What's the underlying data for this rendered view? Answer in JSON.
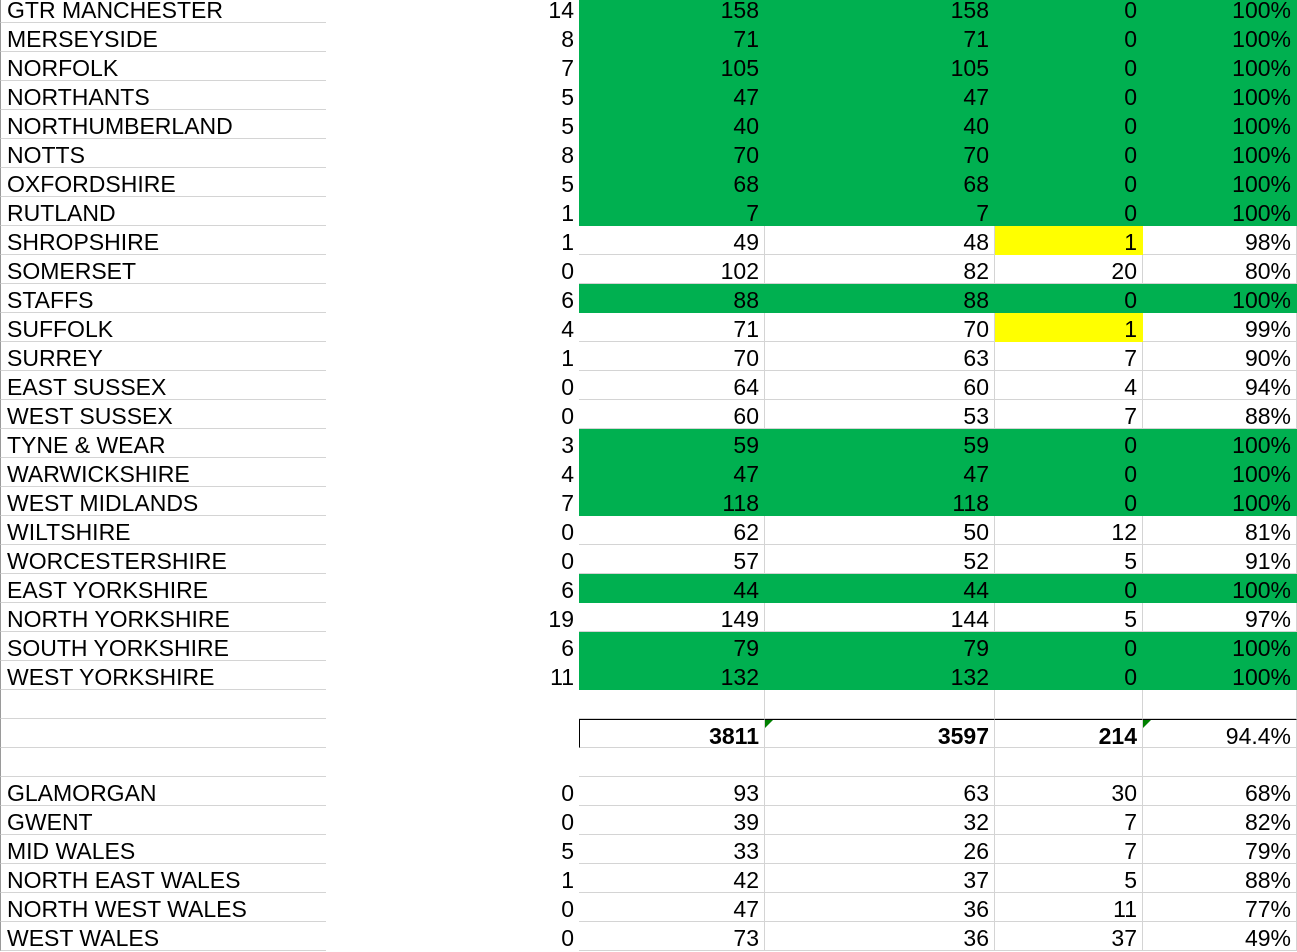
{
  "colors": {
    "full": "#00B050",
    "near": "#FFFF00"
  },
  "england": [
    {
      "name": "GTR MANCHESTER",
      "b": "14",
      "c": "158",
      "d": "158",
      "e": "0",
      "f": "100%",
      "fill": "green"
    },
    {
      "name": "MERSEYSIDE",
      "b": "8",
      "c": "71",
      "d": "71",
      "e": "0",
      "f": "100%",
      "fill": "green"
    },
    {
      "name": "NORFOLK",
      "b": "7",
      "c": "105",
      "d": "105",
      "e": "0",
      "f": "100%",
      "fill": "green"
    },
    {
      "name": "NORTHANTS",
      "b": "5",
      "c": "47",
      "d": "47",
      "e": "0",
      "f": "100%",
      "fill": "green"
    },
    {
      "name": "NORTHUMBERLAND",
      "b": "5",
      "c": "40",
      "d": "40",
      "e": "0",
      "f": "100%",
      "fill": "green"
    },
    {
      "name": "NOTTS",
      "b": "8",
      "c": "70",
      "d": "70",
      "e": "0",
      "f": "100%",
      "fill": "green"
    },
    {
      "name": "OXFORDSHIRE",
      "b": "5",
      "c": "68",
      "d": "68",
      "e": "0",
      "f": "100%",
      "fill": "green"
    },
    {
      "name": "RUTLAND",
      "b": "1",
      "c": "7",
      "d": "7",
      "e": "0",
      "f": "100%",
      "fill": "green"
    },
    {
      "name": "SHROPSHIRE",
      "b": "1",
      "c": "49",
      "d": "48",
      "e": "1",
      "f": "98%",
      "fill": "yellow"
    },
    {
      "name": "SOMERSET",
      "b": "0",
      "c": "102",
      "d": "82",
      "e": "20",
      "f": "80%",
      "fill": ""
    },
    {
      "name": "STAFFS",
      "b": "6",
      "c": "88",
      "d": "88",
      "e": "0",
      "f": "100%",
      "fill": "green"
    },
    {
      "name": "SUFFOLK",
      "b": "4",
      "c": "71",
      "d": "70",
      "e": "1",
      "f": "99%",
      "fill": "yellow"
    },
    {
      "name": "SURREY",
      "b": "1",
      "c": "70",
      "d": "63",
      "e": "7",
      "f": "90%",
      "fill": ""
    },
    {
      "name": "EAST SUSSEX",
      "b": "0",
      "c": "64",
      "d": "60",
      "e": "4",
      "f": "94%",
      "fill": ""
    },
    {
      "name": "WEST SUSSEX",
      "b": "0",
      "c": "60",
      "d": "53",
      "e": "7",
      "f": "88%",
      "fill": ""
    },
    {
      "name": "TYNE & WEAR",
      "b": "3",
      "c": "59",
      "d": "59",
      "e": "0",
      "f": "100%",
      "fill": "green"
    },
    {
      "name": "WARWICKSHIRE",
      "b": "4",
      "c": "47",
      "d": "47",
      "e": "0",
      "f": "100%",
      "fill": "green"
    },
    {
      "name": "WEST MIDLANDS",
      "b": "7",
      "c": "118",
      "d": "118",
      "e": "0",
      "f": "100%",
      "fill": "green"
    },
    {
      "name": "WILTSHIRE",
      "b": "0",
      "c": "62",
      "d": "50",
      "e": "12",
      "f": "81%",
      "fill": ""
    },
    {
      "name": "WORCESTERSHIRE",
      "b": "0",
      "c": "57",
      "d": "52",
      "e": "5",
      "f": "91%",
      "fill": ""
    },
    {
      "name": "EAST YORKSHIRE",
      "b": "6",
      "c": "44",
      "d": "44",
      "e": "0",
      "f": "100%",
      "fill": "green"
    },
    {
      "name": "NORTH YORKSHIRE",
      "b": "19",
      "c": "149",
      "d": "144",
      "e": "5",
      "f": "97%",
      "fill": ""
    },
    {
      "name": "SOUTH YORKSHIRE",
      "b": "6",
      "c": "79",
      "d": "79",
      "e": "0",
      "f": "100%",
      "fill": "green"
    },
    {
      "name": "WEST YORKSHIRE",
      "b": "11",
      "c": "132",
      "d": "132",
      "e": "0",
      "f": "100%",
      "fill": "green"
    }
  ],
  "totals": {
    "c": "3811",
    "d": "3597",
    "e": "214",
    "f": "94.4%"
  },
  "wales": [
    {
      "name": "GLAMORGAN",
      "b": "0",
      "c": "93",
      "d": "63",
      "e": "30",
      "f": "68%",
      "fill": ""
    },
    {
      "name": "GWENT",
      "b": "0",
      "c": "39",
      "d": "32",
      "e": "7",
      "f": "82%",
      "fill": ""
    },
    {
      "name": "MID WALES",
      "b": "5",
      "c": "33",
      "d": "26",
      "e": "7",
      "f": "79%",
      "fill": ""
    },
    {
      "name": "NORTH EAST WALES",
      "b": "1",
      "c": "42",
      "d": "37",
      "e": "5",
      "f": "88%",
      "fill": ""
    },
    {
      "name": "NORTH WEST WALES",
      "b": "0",
      "c": "47",
      "d": "36",
      "e": "11",
      "f": "77%",
      "fill": ""
    },
    {
      "name": "WEST WALES",
      "b": "0",
      "c": "73",
      "d": "36",
      "e": "37",
      "f": "49%",
      "fill": ""
    }
  ]
}
